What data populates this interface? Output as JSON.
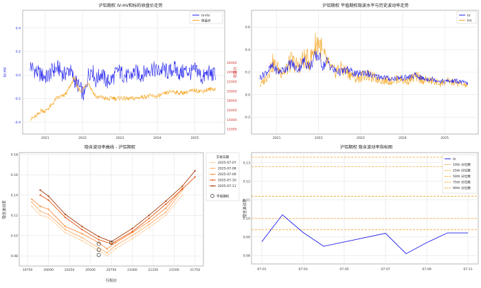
{
  "charts": {
    "c1": {
      "title": "沪铝期权 IV-HV和标的收盘价走势",
      "ylabel": "IV-HV",
      "y2label": "收盘价",
      "legend": [
        "IV-HV",
        "收盘价"
      ],
      "colors": {
        "ivhv": "#1a1aee",
        "close": "#f5a623"
      }
    },
    "c2": {
      "title": "沪铝期权 平值期权隐波水平与历史波动率走势",
      "legend": [
        "IV",
        "HV"
      ],
      "colors": {
        "iv": "#1a1aee",
        "hv": "#f5a623"
      }
    },
    "c3": {
      "title": "隐含波动率曲线 - 沪铝期权",
      "xlabel": "行权价",
      "ylabel": "隐含波动率",
      "legend_title": "交易日期",
      "atm_label": "平值期权"
    },
    "c4": {
      "title": "沪铝期权 隐含波动率指标图",
      "ylabel": "隐含波动率",
      "iv_label": "IV"
    }
  },
  "chart_data": [
    {
      "type": "line",
      "title": "沪铝期权 IV-HV和标的收盘价走势",
      "ylabel": "IV-HV",
      "y2label": "收盘价",
      "ylim": [
        -0.5,
        0.55
      ],
      "y2lim": [
        11000,
        37000
      ],
      "x_ticks": [
        "2021",
        "2022",
        "2023",
        "2024",
        "2025"
      ],
      "y_ticks": [
        -0.4,
        -0.2,
        0.0,
        0.2,
        0.4
      ],
      "y2_ticks": [
        12000,
        14000,
        16000,
        18000,
        20000,
        22000,
        24000,
        26000
      ],
      "series": [
        {
          "name": "IV-HV",
          "axis": "left",
          "x": [
            2020.6,
            2020.75,
            2020.9,
            2021.05,
            2021.2,
            2021.35,
            2021.5,
            2021.65,
            2021.8,
            2021.95,
            2022.05,
            2022.15,
            2022.25,
            2022.35,
            2022.5,
            2022.65,
            2022.8,
            2022.95,
            2023.1,
            2023.25,
            2023.4,
            2023.55,
            2023.7,
            2023.85,
            2024.0,
            2024.15,
            2024.3,
            2024.45,
            2024.6,
            2024.75,
            2024.9,
            2025.05,
            2025.2,
            2025.35,
            2025.5,
            2025.55
          ],
          "y": [
            0.08,
            0.03,
            0.0,
            -0.02,
            0.04,
            0.06,
            0.0,
            0.05,
            -0.05,
            -0.12,
            -0.18,
            0.0,
            0.06,
            -0.05,
            0.02,
            -0.06,
            -0.03,
            0.04,
            0.0,
            -0.02,
            0.03,
            0.0,
            0.03,
            0.06,
            0.03,
            0.05,
            0.02,
            0.06,
            0.01,
            0.04,
            0.02,
            0.05,
            -0.03,
            0.02,
            0.0,
            0.02
          ]
        },
        {
          "name": "收盘价",
          "axis": "right",
          "x": [
            2020.6,
            2020.7,
            2020.8,
            2020.9,
            2021.0,
            2021.1,
            2021.2,
            2021.3,
            2021.4,
            2021.5,
            2021.6,
            2021.7,
            2021.75,
            2021.8,
            2021.85,
            2021.95,
            2022.05,
            2022.15,
            2022.2,
            2022.3,
            2022.4,
            2022.5,
            2022.6,
            2022.7,
            2022.8,
            2022.9,
            2023.0,
            2023.2,
            2023.4,
            2023.6,
            2023.8,
            2024.0,
            2024.2,
            2024.4,
            2024.6,
            2024.8,
            2025.0,
            2025.2,
            2025.4,
            2025.55
          ],
          "y": [
            14200,
            14400,
            15000,
            16000,
            15800,
            16500,
            17300,
            18500,
            18800,
            19000,
            20000,
            21500,
            22500,
            23000,
            21000,
            20000,
            20800,
            22000,
            21000,
            19500,
            18600,
            18800,
            18500,
            18300,
            18700,
            18400,
            18600,
            18400,
            18500,
            18800,
            19000,
            18900,
            19500,
            20000,
            19600,
            19800,
            20200,
            20000,
            20400,
            20500
          ]
        }
      ]
    },
    {
      "type": "line",
      "title": "沪铝期权 平值期权隐波水平与历史波动率走势",
      "ylim": [
        -0.35,
        0.75
      ],
      "x_ticks": [
        "2021",
        "2022",
        "2023",
        "2024",
        "2025"
      ],
      "y_ticks": [
        -0.2,
        0.0,
        0.2,
        0.4,
        0.6
      ],
      "series": [
        {
          "name": "IV",
          "x": [
            2020.6,
            2020.75,
            2020.9,
            2021.05,
            2021.2,
            2021.35,
            2021.5,
            2021.65,
            2021.8,
            2021.9,
            2022.0,
            2022.1,
            2022.2,
            2022.35,
            2022.5,
            2022.7,
            2022.9,
            2023.1,
            2023.3,
            2023.5,
            2023.7,
            2023.9,
            2024.1,
            2024.3,
            2024.5,
            2024.7,
            2024.9,
            2025.1,
            2025.3,
            2025.55
          ],
          "y": [
            0.15,
            0.2,
            0.25,
            0.2,
            0.23,
            0.28,
            0.22,
            0.3,
            0.25,
            0.33,
            0.35,
            0.25,
            0.3,
            0.22,
            0.2,
            0.22,
            0.18,
            0.2,
            0.16,
            0.16,
            0.14,
            0.15,
            0.15,
            0.17,
            0.14,
            0.14,
            0.12,
            0.12,
            0.12,
            0.1
          ]
        },
        {
          "name": "HV",
          "x": [
            2020.6,
            2020.75,
            2020.9,
            2021.05,
            2021.2,
            2021.35,
            2021.5,
            2021.65,
            2021.8,
            2021.9,
            2022.0,
            2022.1,
            2022.2,
            2022.35,
            2022.5,
            2022.7,
            2022.9,
            2023.1,
            2023.3,
            2023.5,
            2023.7,
            2023.9,
            2024.1,
            2024.3,
            2024.5,
            2024.7,
            2024.9,
            2025.1,
            2025.3,
            2025.55
          ],
          "y": [
            0.08,
            0.15,
            0.28,
            0.22,
            0.2,
            0.3,
            0.25,
            0.32,
            0.3,
            0.42,
            0.48,
            0.35,
            0.28,
            0.2,
            0.23,
            0.2,
            0.14,
            0.18,
            0.15,
            0.13,
            0.12,
            0.14,
            0.12,
            0.16,
            0.13,
            0.12,
            0.1,
            0.12,
            0.1,
            0.08
          ]
        }
      ]
    },
    {
      "type": "line",
      "title": "隐含波动率曲线 - 沪铝期权",
      "xlabel": "行权价",
      "ylabel": "隐含波动率",
      "xlim": [
        19650,
        21850
      ],
      "ylim": [
        0.07,
        0.182
      ],
      "x_ticks": [
        19750,
        20000,
        20250,
        20500,
        20750,
        21000,
        21250,
        21500,
        21750
      ],
      "y_ticks": [
        0.08,
        0.1,
        0.12,
        0.14,
        0.16,
        0.18
      ],
      "legend_title": "交易日期",
      "series": [
        {
          "name": "2025-07-07",
          "color": "#fdd0a2",
          "x": [
            19800,
            19900,
            20000,
            20200,
            20400,
            20600,
            20700,
            20800,
            21000,
            21200,
            21400,
            21600
          ],
          "y": [
            0.129,
            0.12,
            0.118,
            0.103,
            0.095,
            0.085,
            0.08,
            0.087,
            0.097,
            0.108,
            0.12,
            0.14
          ]
        },
        {
          "name": "2025-07-08",
          "color": "#fdae6b",
          "x": [
            19800,
            19900,
            20000,
            20200,
            20400,
            20600,
            20700,
            20800,
            21000,
            21200,
            21400,
            21600
          ],
          "y": [
            0.133,
            0.124,
            0.121,
            0.106,
            0.098,
            0.088,
            0.083,
            0.09,
            0.1,
            0.111,
            0.123,
            0.145
          ]
        },
        {
          "name": "2025-07-09",
          "color": "#fd8d3c",
          "x": [
            19800,
            19900,
            20000,
            20200,
            20400,
            20600,
            20700,
            20800,
            21000,
            21200,
            21400,
            21600
          ],
          "y": [
            0.136,
            0.129,
            0.126,
            0.109,
            0.102,
            0.093,
            0.087,
            0.093,
            0.103,
            0.114,
            0.127,
            0.147
          ]
        },
        {
          "name": "2025-07-10",
          "color": "#e6550d",
          "x": [
            19900,
            20000,
            20200,
            20400,
            20600,
            20750,
            21000,
            21200,
            21400,
            21600,
            21750
          ],
          "y": [
            0.14,
            0.135,
            0.118,
            0.106,
            0.096,
            0.092,
            0.104,
            0.117,
            0.131,
            0.146,
            0.158
          ]
        },
        {
          "name": "2025-07-11",
          "color": "#a63603",
          "x": [
            19900,
            20000,
            20200,
            20400,
            20600,
            20750,
            21000,
            21200,
            21400,
            21600,
            21750
          ],
          "y": [
            0.145,
            0.139,
            0.121,
            0.109,
            0.099,
            0.094,
            0.107,
            0.12,
            0.134,
            0.149,
            0.164
          ]
        }
      ],
      "atm_points": {
        "x": [
          20600,
          20600,
          20600,
          20750
        ],
        "y": [
          0.092,
          0.086,
          0.081,
          0.093
        ]
      }
    },
    {
      "type": "line",
      "title": "沪铝期权 隐含波动率指标图",
      "ylabel": "隐含波动率",
      "x": [
        "07-01",
        "07-02",
        "07-03",
        "07-04",
        "07-07",
        "07-08",
        "07-09",
        "07-10",
        "07-11"
      ],
      "x_ticks": [
        "07-01",
        "07-03",
        "07-05",
        "07-07",
        "07-09",
        "07-11"
      ],
      "ylim": [
        0.0755,
        0.1355
      ],
      "y_ticks": [
        0.08,
        0.09,
        0.1,
        0.11,
        0.12,
        0.13
      ],
      "series": [
        {
          "name": "IV",
          "color": "#1a1aee",
          "values": [
            0.0875,
            0.102,
            0.0925,
            0.085,
            0.092,
            0.081,
            0.087,
            0.0922,
            0.0922
          ]
        }
      ],
      "percentiles": [
        {
          "name": "10th 分位数",
          "value": 0.094
        },
        {
          "name": "25th 分位数",
          "value": 0.1
        },
        {
          "name": "50th 分位数",
          "value": 0.112
        },
        {
          "name": "75th 分位数",
          "value": 0.128
        },
        {
          "name": "90th 分位数",
          "value": 0.133
        }
      ]
    }
  ]
}
